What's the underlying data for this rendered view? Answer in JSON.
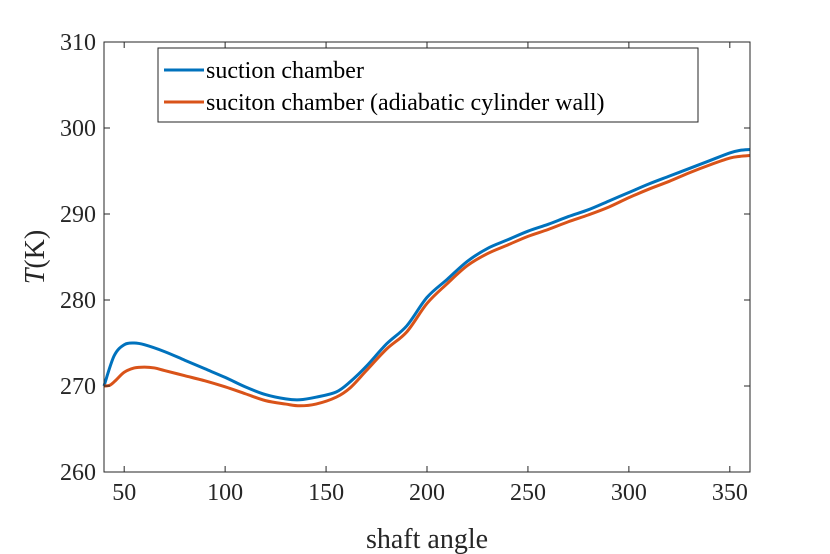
{
  "chart_data": {
    "type": "line",
    "title": "",
    "xlabel": "shaft angle",
    "ylabel": "T(K)",
    "ylabel_parts": {
      "symbol": "T",
      "unit": "(K)"
    },
    "xlim": [
      40,
      360
    ],
    "ylim": [
      260,
      310
    ],
    "xticks": [
      50,
      100,
      150,
      200,
      250,
      300,
      350
    ],
    "yticks": [
      260,
      270,
      280,
      290,
      300,
      310
    ],
    "grid": false,
    "legend_position": "top-left",
    "series": [
      {
        "name": "suction chamber",
        "color": "#0072BD",
        "x": [
          40,
          45,
          50,
          55,
          60,
          70,
          80,
          90,
          100,
          110,
          120,
          130,
          137,
          145,
          155,
          162,
          170,
          180,
          190,
          200,
          210,
          220,
          230,
          240,
          250,
          260,
          270,
          280,
          290,
          300,
          310,
          320,
          330,
          340,
          350,
          355,
          360
        ],
        "y": [
          270.0,
          273.5,
          274.8,
          275.0,
          274.8,
          274.0,
          273.0,
          272.0,
          271.0,
          269.9,
          269.0,
          268.5,
          268.4,
          268.7,
          269.3,
          270.5,
          272.3,
          274.9,
          277.0,
          280.3,
          282.4,
          284.5,
          286.0,
          287.0,
          288.0,
          288.8,
          289.7,
          290.5,
          291.5,
          292.5,
          293.5,
          294.4,
          295.3,
          296.2,
          297.1,
          297.4,
          297.5
        ]
      },
      {
        "name": "suciton chamber (adiabatic cylinder wall)",
        "color": "#D95319",
        "x": [
          40,
          43,
          46,
          50,
          55,
          60,
          65,
          70,
          80,
          90,
          100,
          110,
          120,
          130,
          137,
          145,
          155,
          162,
          170,
          180,
          190,
          200,
          210,
          220,
          230,
          240,
          250,
          260,
          270,
          280,
          290,
          300,
          310,
          320,
          330,
          340,
          350,
          355,
          360
        ],
        "y": [
          270.0,
          270.1,
          270.7,
          271.6,
          272.1,
          272.2,
          272.1,
          271.8,
          271.2,
          270.6,
          269.9,
          269.1,
          268.3,
          267.9,
          267.7,
          267.9,
          268.7,
          269.8,
          271.8,
          274.3,
          276.3,
          279.6,
          281.9,
          284.0,
          285.4,
          286.4,
          287.4,
          288.2,
          289.1,
          289.9,
          290.8,
          291.9,
          292.9,
          293.8,
          294.8,
          295.7,
          296.5,
          296.7,
          296.8
        ]
      }
    ]
  }
}
